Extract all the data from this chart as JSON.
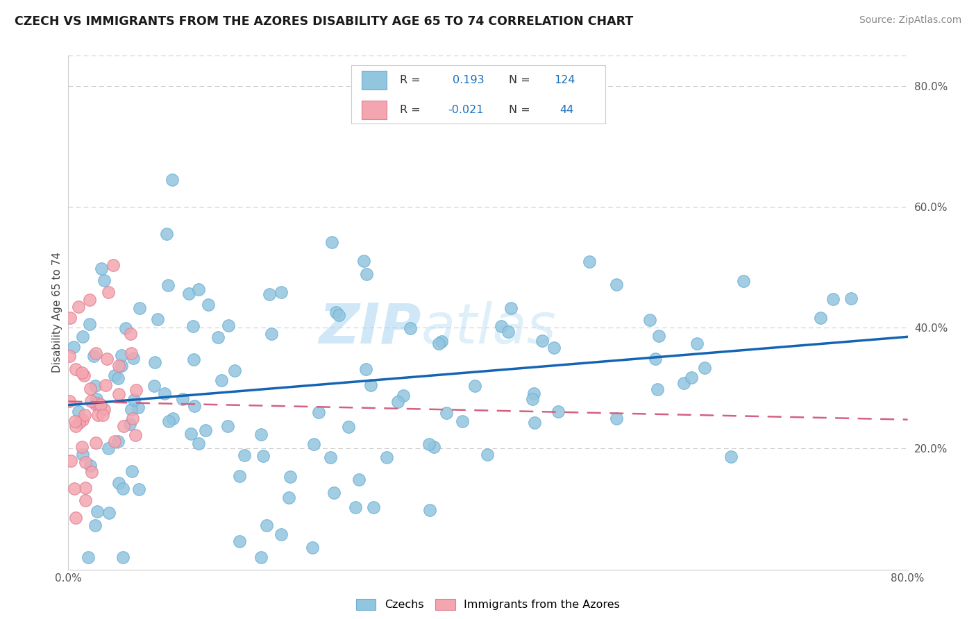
{
  "title": "CZECH VS IMMIGRANTS FROM THE AZORES DISABILITY AGE 65 TO 74 CORRELATION CHART",
  "source": "Source: ZipAtlas.com",
  "ylabel": "Disability Age 65 to 74",
  "xlim": [
    0.0,
    0.8
  ],
  "ylim": [
    0.0,
    0.85
  ],
  "y_tick_positions_right": [
    0.2,
    0.4,
    0.6,
    0.8
  ],
  "y_tick_labels_right": [
    "20.0%",
    "40.0%",
    "60.0%",
    "80.0%"
  ],
  "blue_color": "#92c5de",
  "blue_edge_color": "#6baed6",
  "pink_color": "#f4a6b0",
  "pink_edge_color": "#e07b90",
  "line_blue": "#1464b4",
  "line_pink": "#d46080",
  "watermark_zip": "ZIP",
  "watermark_atlas": "atlas",
  "background_color": "#ffffff",
  "grid_color": "#cccccc",
  "czechs_label": "Czechs",
  "azores_label": "Immigrants from the Azores",
  "blue_r": "0.193",
  "blue_n": "124",
  "pink_r": "-0.021",
  "pink_n": "44",
  "blue_line_y0": 0.272,
  "blue_line_y1": 0.385,
  "pink_line_y0": 0.278,
  "pink_line_y1": 0.248
}
